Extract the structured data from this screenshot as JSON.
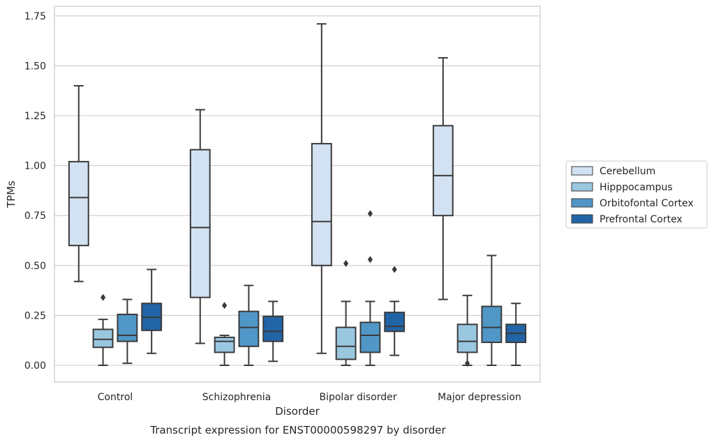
{
  "chart_data": {
    "type": "box",
    "title": "",
    "caption": "Transcript expression for ENST00000598297 by disorder",
    "xlabel": "Disorder",
    "ylabel": "TPMs",
    "ylim": [
      -0.08,
      1.8
    ],
    "yticks": [
      "0.00",
      "0.25",
      "0.50",
      "0.75",
      "1.00",
      "1.25",
      "1.50",
      "1.75"
    ],
    "ytick_values": [
      0,
      0.25,
      0.5,
      0.75,
      1.0,
      1.25,
      1.5,
      1.75
    ],
    "grid": "horizontal",
    "legend_placement": "right",
    "categories": [
      "Control",
      "Schizophrenia",
      "Bipolar disorder",
      "Major depression"
    ],
    "series": [
      {
        "name": "Cerebellum",
        "color": "#d3e2f2",
        "boxes": [
          {
            "whislo": 0.42,
            "q1": 0.6,
            "med": 0.84,
            "q3": 1.02,
            "whishi": 1.4,
            "fliers": []
          },
          {
            "whislo": 0.11,
            "q1": 0.34,
            "med": 0.69,
            "q3": 1.08,
            "whishi": 1.28,
            "fliers": []
          },
          {
            "whislo": 0.06,
            "q1": 0.5,
            "med": 0.72,
            "q3": 1.11,
            "whishi": 1.71,
            "fliers": []
          },
          {
            "whislo": 0.33,
            "q1": 0.75,
            "med": 0.95,
            "q3": 1.2,
            "whishi": 1.54,
            "fliers": []
          }
        ]
      },
      {
        "name": "Hipppocampus",
        "color": "#9ac7e0",
        "boxes": [
          {
            "whislo": 0.0,
            "q1": 0.09,
            "med": 0.13,
            "q3": 0.18,
            "whishi": 0.23,
            "fliers": [
              0.34
            ]
          },
          {
            "whislo": 0.0,
            "q1": 0.065,
            "med": 0.12,
            "q3": 0.14,
            "whishi": 0.15,
            "fliers": [
              0.3
            ]
          },
          {
            "whislo": 0.0,
            "q1": 0.03,
            "med": 0.095,
            "q3": 0.19,
            "whishi": 0.32,
            "fliers": [
              0.51
            ]
          },
          {
            "whislo": 0.0,
            "q1": 0.065,
            "med": 0.12,
            "q3": 0.205,
            "whishi": 0.35,
            "fliers": [
              0.01
            ]
          }
        ]
      },
      {
        "name": "Orbitofontal Cortex",
        "color": "#5097c7",
        "boxes": [
          {
            "whislo": 0.01,
            "q1": 0.12,
            "med": 0.15,
            "q3": 0.255,
            "whishi": 0.33,
            "fliers": []
          },
          {
            "whislo": 0.0,
            "q1": 0.095,
            "med": 0.19,
            "q3": 0.27,
            "whishi": 0.4,
            "fliers": []
          },
          {
            "whislo": 0.0,
            "q1": 0.065,
            "med": 0.15,
            "q3": 0.215,
            "whishi": 0.32,
            "fliers": [
              0.76,
              0.53
            ]
          },
          {
            "whislo": 0.0,
            "q1": 0.115,
            "med": 0.19,
            "q3": 0.295,
            "whishi": 0.55,
            "fliers": []
          }
        ]
      },
      {
        "name": "Prefrontal Cortex",
        "color": "#2265a6",
        "boxes": [
          {
            "whislo": 0.06,
            "q1": 0.175,
            "med": 0.24,
            "q3": 0.31,
            "whishi": 0.48,
            "fliers": []
          },
          {
            "whislo": 0.02,
            "q1": 0.12,
            "med": 0.17,
            "q3": 0.245,
            "whishi": 0.32,
            "fliers": []
          },
          {
            "whislo": 0.05,
            "q1": 0.17,
            "med": 0.195,
            "q3": 0.265,
            "whishi": 0.32,
            "fliers": [
              0.48
            ]
          },
          {
            "whislo": 0.0,
            "q1": 0.115,
            "med": 0.16,
            "q3": 0.205,
            "whishi": 0.31,
            "fliers": []
          }
        ]
      }
    ]
  }
}
